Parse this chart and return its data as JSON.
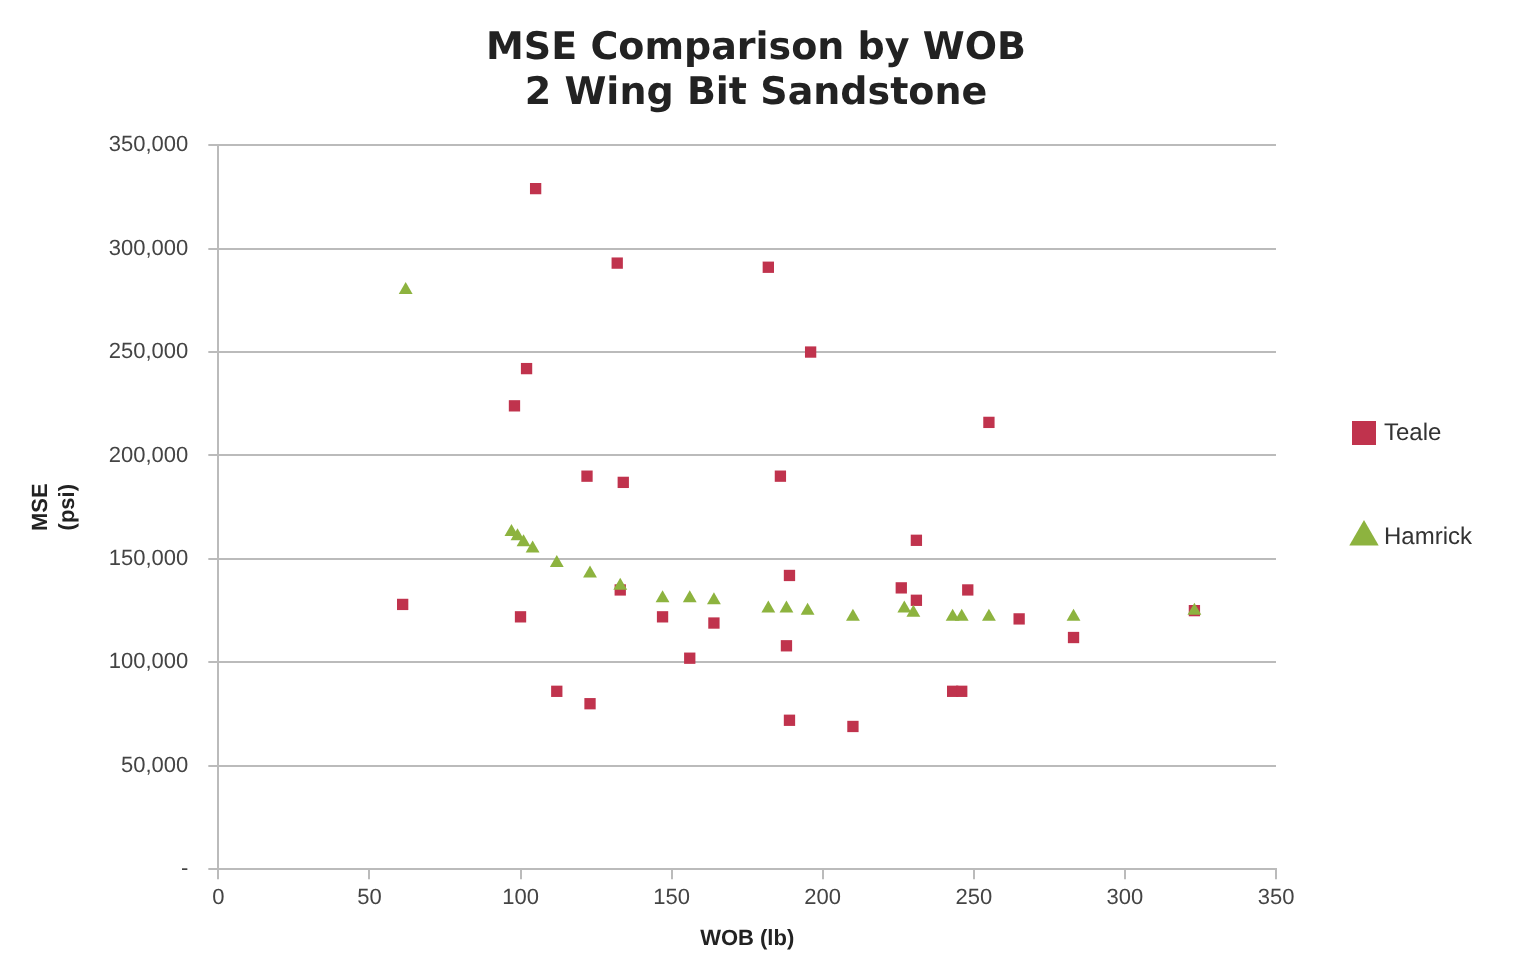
{
  "chart_data": {
    "type": "scatter",
    "title": [
      "MSE Comparison by WOB",
      "2 Wing Bit Sandstone"
    ],
    "xlabel": "WOB (lb)",
    "ylabel": [
      "MSE",
      "(psi)"
    ],
    "xlim": [
      0,
      350
    ],
    "xticks": [
      0,
      50,
      100,
      150,
      200,
      250,
      300,
      350
    ],
    "ylim": [
      0,
      350000
    ],
    "yticks": [
      {
        "value": 0,
        "label": "-"
      },
      {
        "value": 50000,
        "label": "50,000"
      },
      {
        "value": 100000,
        "label": "100,000"
      },
      {
        "value": 150000,
        "label": "150,000"
      },
      {
        "value": 200000,
        "label": "200,000"
      },
      {
        "value": 250000,
        "label": "250,000"
      },
      {
        "value": 300000,
        "label": "300,000"
      },
      {
        "value": 350000,
        "label": "350,000"
      }
    ],
    "grid": "y",
    "legend": "right",
    "series": [
      {
        "name": "Teale",
        "color": "#c0334d",
        "marker": "square",
        "x": [
          105,
          132,
          182,
          196,
          255,
          102,
          98,
          122,
          134,
          186,
          231,
          189,
          61,
          100,
          147,
          164,
          265,
          248,
          226,
          231,
          188,
          156,
          112,
          123,
          189,
          210,
          243,
          246,
          283,
          323,
          133
        ],
        "values": [
          329000,
          293000,
          291000,
          250000,
          216000,
          242000,
          224000,
          190000,
          187000,
          190000,
          159000,
          142000,
          128000,
          122000,
          122000,
          119000,
          121000,
          135000,
          136000,
          130000,
          108000,
          102000,
          86000,
          80000,
          72000,
          69000,
          86000,
          86000,
          112000,
          125000,
          135000
        ]
      },
      {
        "name": "Hamrick",
        "color": "#8db33f",
        "marker": "triangle",
        "x": [
          62,
          97,
          99,
          101,
          104,
          112,
          123,
          133,
          147,
          156,
          164,
          182,
          188,
          195,
          210,
          227,
          230,
          243,
          246,
          255,
          283,
          323
        ],
        "values": [
          280000,
          163000,
          161000,
          158000,
          155000,
          148000,
          143000,
          137000,
          131000,
          131000,
          130000,
          126000,
          126000,
          125000,
          122000,
          126000,
          124000,
          122000,
          122000,
          122000,
          122000,
          125000
        ]
      }
    ]
  }
}
